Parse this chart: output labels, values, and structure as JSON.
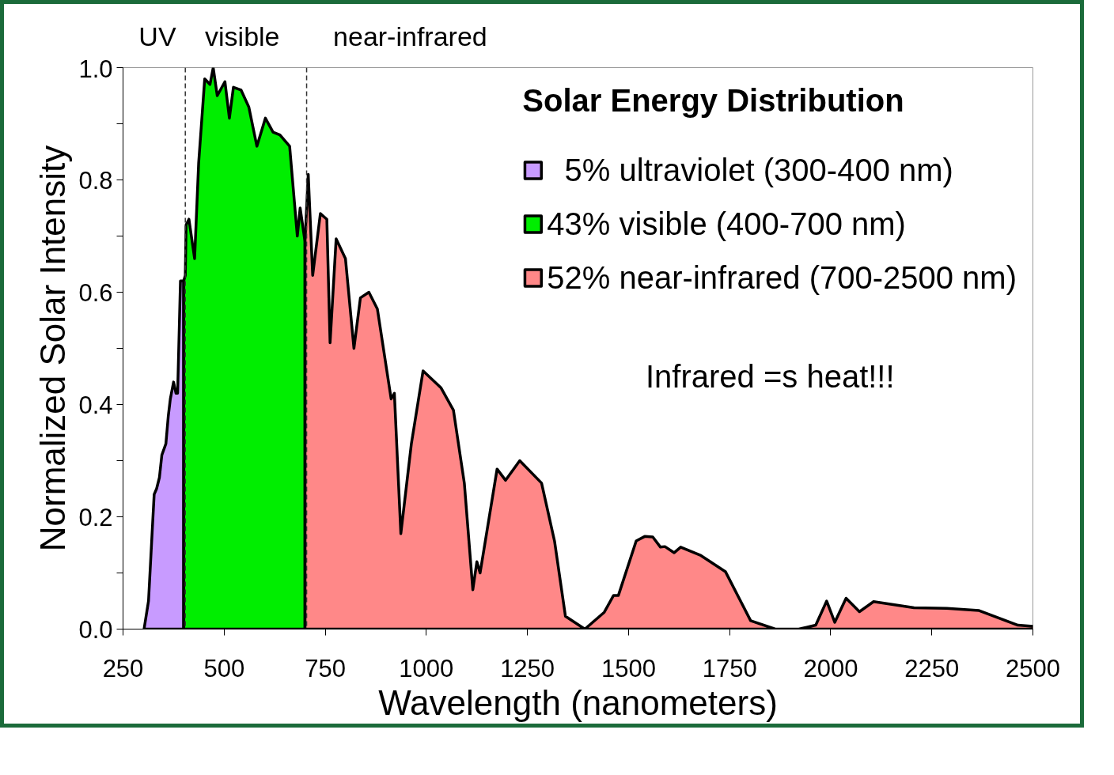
{
  "chart_data": {
    "type": "area",
    "title": null,
    "xlabel": "Wavelength (nanometers)",
    "ylabel": "Normalized Solar Intensity",
    "legend_title": "Solar Energy Distribution",
    "series": [
      {
        "name": "  5% ultraviolet (300-400 nm)",
        "color": "#c89bff",
        "x": [
          302,
          313,
          327,
          333,
          340,
          346,
          356,
          362,
          367,
          375,
          381,
          385,
          392,
          400
        ],
        "values": [
          0,
          0.05,
          0.24,
          0.25,
          0.27,
          0.31,
          0.33,
          0.38,
          0.41,
          0.44,
          0.42,
          0.42,
          0.62,
          0.62
        ]
      },
      {
        "name": "43% visible (400-700 nm)",
        "color": "#00ee00",
        "x": [
          400,
          404,
          406,
          413,
          427,
          437,
          452,
          465,
          473,
          483,
          502,
          513,
          523,
          542,
          561,
          581,
          602,
          621,
          638,
          662,
          681,
          688,
          700
        ],
        "values": [
          0.62,
          0.63,
          0.72,
          0.73,
          0.66,
          0.83,
          0.98,
          0.97,
          1.0,
          0.95,
          0.975,
          0.91,
          0.965,
          0.96,
          0.93,
          0.86,
          0.91,
          0.885,
          0.88,
          0.86,
          0.7,
          0.75,
          0.69
        ]
      },
      {
        "name": "52% near-infrared (700-2500 nm)",
        "color": "#ff8888",
        "x": [
          700,
          708,
          719,
          738,
          754,
          762,
          777,
          800,
          821,
          837,
          858,
          879,
          913,
          921,
          937,
          963,
          992,
          1036,
          1067,
          1094,
          1115,
          1125,
          1133,
          1175,
          1196,
          1231,
          1285,
          1317,
          1344,
          1392,
          1440,
          1463,
          1475,
          1519,
          1540,
          1560,
          1579,
          1590,
          1613,
          1629,
          1679,
          1740,
          1802,
          1863,
          1921,
          1963,
          1990,
          2010,
          2038,
          2071,
          2106,
          2206,
          2287,
          2367,
          2463,
          2500
        ],
        "values": [
          0.69,
          0.81,
          0.63,
          0.74,
          0.73,
          0.51,
          0.695,
          0.66,
          0.5,
          0.59,
          0.6,
          0.57,
          0.41,
          0.42,
          0.17,
          0.33,
          0.46,
          0.43,
          0.39,
          0.26,
          0.07,
          0.12,
          0.1,
          0.285,
          0.265,
          0.3,
          0.26,
          0.157,
          0.023,
          0,
          0.03,
          0.06,
          0.06,
          0.157,
          0.165,
          0.164,
          0.146,
          0.147,
          0.136,
          0.146,
          0.131,
          0.102,
          0.015,
          0,
          0,
          0.007,
          0.05,
          0.012,
          0.055,
          0.031,
          0.049,
          0.038,
          0.037,
          0.033,
          0.007,
          0.005
        ]
      }
    ],
    "xlim": [
      250,
      2500
    ],
    "xticks": [
      250,
      500,
      750,
      1000,
      1250,
      1500,
      1750,
      2000,
      2250,
      2500
    ],
    "ylim": [
      0,
      1.0
    ],
    "yticks": [
      {
        "value": 0,
        "label": "0.0"
      },
      {
        "value": 0.1,
        "label": null
      },
      {
        "value": 0.2,
        "label": "0.2"
      },
      {
        "value": 0.3,
        "label": null
      },
      {
        "value": 0.4,
        "label": "0.4"
      },
      {
        "value": 0.5,
        "label": null
      },
      {
        "value": 0.6,
        "label": "0.6"
      },
      {
        "value": 0.7,
        "label": null
      },
      {
        "value": 0.8,
        "label": "0.8"
      },
      {
        "value": 0.9,
        "label": null
      },
      {
        "value": 1.0,
        "label": "1.0"
      }
    ],
    "ref_lines": [
      {
        "axis": "x",
        "value": 404,
        "label": null,
        "color": "#333333",
        "line_style": "dashed"
      },
      {
        "axis": "x",
        "value": 704,
        "label": null,
        "color": "#333333",
        "line_style": "dashed"
      }
    ],
    "annotations": [
      "UV",
      "visible",
      "near-infrared",
      "Infrared =s heat!!!"
    ],
    "grid": false,
    "legend": "top right"
  }
}
